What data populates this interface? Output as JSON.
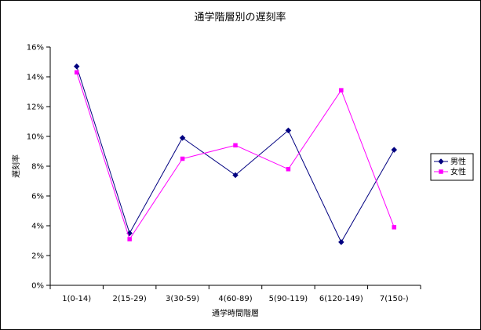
{
  "chart_data": {
    "type": "line",
    "title": "通学階層別の遅刻率",
    "xlabel": "通学時間階層",
    "ylabel": "遅刻率",
    "categories": [
      "1(0-14)",
      "2(15-29)",
      "3(30-59)",
      "4(60-89)",
      "5(90-119)",
      "6(120-149)",
      "7(150-)"
    ],
    "ylim": [
      0,
      16
    ],
    "yticks": [
      "0%",
      "2%",
      "4%",
      "6%",
      "8%",
      "10%",
      "12%",
      "14%",
      "16%"
    ],
    "grid": false,
    "legend_position": "right",
    "series": [
      {
        "name": "男性",
        "color": "#000080",
        "marker": "diamond",
        "values": [
          14.7,
          3.5,
          9.9,
          7.4,
          10.4,
          2.9,
          9.1
        ]
      },
      {
        "name": "女性",
        "color": "#ff00ff",
        "marker": "square",
        "values": [
          14.3,
          3.1,
          8.5,
          9.4,
          7.8,
          13.1,
          3.9
        ]
      }
    ]
  }
}
